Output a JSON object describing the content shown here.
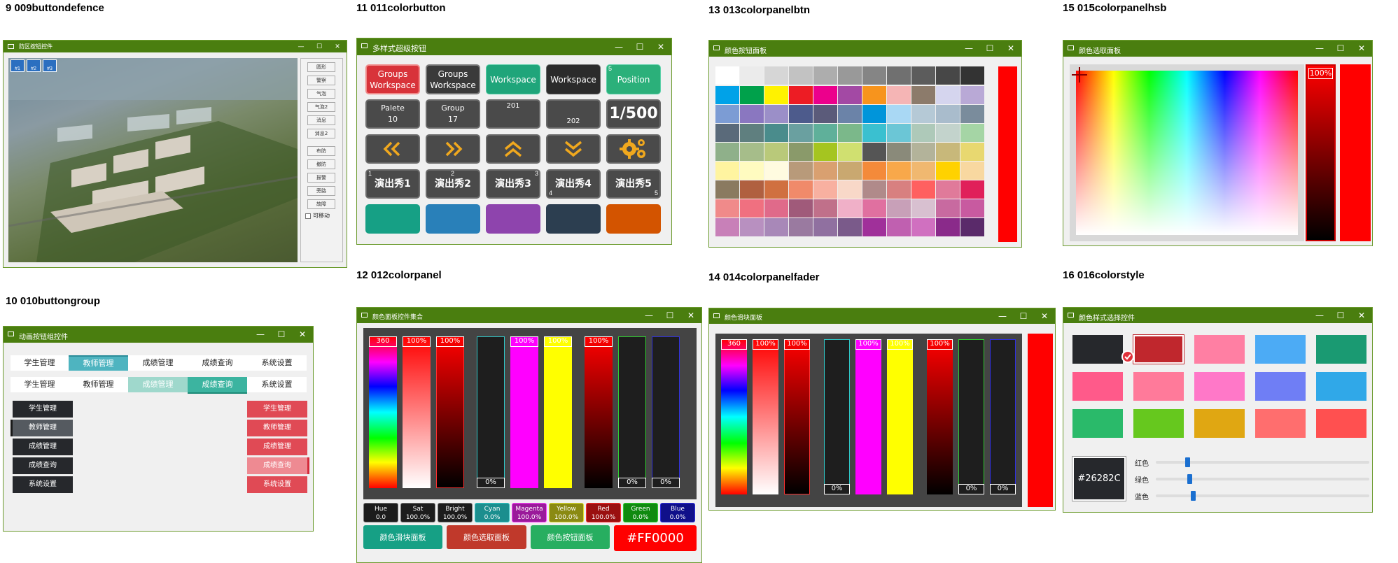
{
  "captions": {
    "c9": "9   009buttondefence",
    "c10": "10  010buttongroup",
    "c11": "11  011colorbutton",
    "c12": "12  012colorpanel",
    "c13": "13  013colorpanelbtn",
    "c14": "14  014colorpanelfader",
    "c15": "15  015colorpanelhsb",
    "c16": "16  016colorstyle"
  },
  "window_controls": {
    "min": "—",
    "max": "☐",
    "close": "✕"
  },
  "w9": {
    "title": "防区按钮控件",
    "markers": [
      "#1",
      "#2",
      "#3"
    ],
    "side_buttons": [
      "圆形",
      "警察",
      "气泡",
      "气泡2",
      "消息",
      "消息2",
      "布防",
      "撤防",
      "报警",
      "旁路",
      "故障"
    ],
    "checkbox_label": "可移动"
  },
  "w10": {
    "title": "动画按钮组控件",
    "row1": [
      "学生管理",
      "教师管理",
      "成绩管理",
      "成绩查询",
      "系统设置"
    ],
    "row2": [
      "学生管理",
      "教师管理",
      "成绩管理",
      "成绩查询",
      "系统设置"
    ],
    "left_menu": [
      "学生管理",
      "教师管理",
      "成绩管理",
      "成绩查询",
      "系统设置"
    ],
    "right_menu": [
      "学生管理",
      "教师管理",
      "成绩管理",
      "成绩查询",
      "系统设置"
    ]
  },
  "w11": {
    "title": "多样式超级按钮",
    "r1": [
      [
        "Groups",
        "Workspace"
      ],
      [
        "Groups",
        "Workspace"
      ],
      [
        "Workspace"
      ],
      [
        "Workspace"
      ],
      [
        "Position"
      ]
    ],
    "corner_5": "5",
    "r2": [
      [
        "Palete",
        "10"
      ],
      [
        "Group",
        "17"
      ],
      [
        "201"
      ],
      [
        "202"
      ],
      [
        "1/500"
      ]
    ],
    "r4": [
      "演出秀1",
      "演出秀2",
      "演出秀3",
      "演出秀4",
      "演出秀5"
    ],
    "r4_corners": [
      "1",
      "2",
      "3",
      "4",
      "5"
    ],
    "icons": [
      "double-chevron-left-icon",
      "double-chevron-right-icon",
      "double-chevron-up-icon",
      "double-chevron-down-icon",
      "gears-icon"
    ]
  },
  "w12": {
    "title": "颜色面板控件集合",
    "top_labels": [
      "360",
      "100%",
      "100%",
      "100%",
      "100%",
      "100%"
    ],
    "bottom_labels": [
      "0%",
      "0%",
      "0%"
    ],
    "info": [
      {
        "name": "Hue",
        "value": "0.0",
        "color": "#1c1c1c",
        "border": "#777777"
      },
      {
        "name": "Sat",
        "value": "100.0%",
        "color": "#1c1c1c",
        "border": "#777777"
      },
      {
        "name": "Bright",
        "value": "100.0%",
        "color": "#1c1c1c",
        "border": "#777777"
      },
      {
        "name": "Cyan",
        "value": "0.0%",
        "color": "#1b8e8e",
        "border": "#30c8c8"
      },
      {
        "name": "Magenta",
        "value": "100.0%",
        "color": "#9a1a9a",
        "border": "#ff40ff"
      },
      {
        "name": "Yellow",
        "value": "100.0%",
        "color": "#8a8a12",
        "border": "#e0e030"
      },
      {
        "name": "Red",
        "value": "100.0%",
        "color": "#9a1010",
        "border": "#ff3030"
      },
      {
        "name": "Green",
        "value": "0.0%",
        "color": "#108a10",
        "border": "#30d030"
      },
      {
        "name": "Blue",
        "value": "0.0%",
        "color": "#10108a",
        "border": "#3030e0"
      }
    ],
    "buttons": [
      "颜色滑块面板",
      "颜色选取面板",
      "颜色按钮面板"
    ],
    "hex": "#FF0000"
  },
  "w13": {
    "title": "颜色按钮面板",
    "colors": [
      [
        "#ffffff",
        "#ebebeb",
        "#d6d6d6",
        "#c2c2c2",
        "#adadad",
        "#999999",
        "#858585",
        "#707070",
        "#5c5c5c",
        "#474747",
        "#333333"
      ],
      [
        "#00a2e8",
        "#00a14b",
        "#fff200",
        "#ed1c24",
        "#ec008c",
        "#a349a4",
        "#f7941d",
        "#f5b5b5",
        "#8c7b6b",
        "#d5d5ee",
        "#b9a9d6"
      ],
      [
        "#7c9cd4",
        "#8a77c0",
        "#9b8fc8",
        "#4d5b8c",
        "#5b5b7a",
        "#6b83a8",
        "#0095da",
        "#a9d8f4",
        "#b5c9d6",
        "#a9bccc",
        "#7a8c9c"
      ],
      [
        "#5a6a7a",
        "#5f7f7f",
        "#4a8c8c",
        "#6aa0a0",
        "#5fb09a",
        "#7bb88a",
        "#3ac0d0",
        "#6bc6d6",
        "#aec9b9",
        "#c3d3cc",
        "#a5d5a5"
      ],
      [
        "#8fb08a",
        "#a6bd8a",
        "#b9c97a",
        "#8a9a6a",
        "#a5c520",
        "#d0e070",
        "#555555",
        "#8a8a7a",
        "#b3b39a",
        "#c8b87a",
        "#e8d870"
      ],
      [
        "#fff4a0",
        "#fffbc0",
        "#fffbe0",
        "#b89a7a",
        "#d9a070",
        "#c9a870",
        "#f48a3a",
        "#f8a84a",
        "#f0b870",
        "#ffd200",
        "#f8d8a0"
      ],
      [
        "#8a7a60",
        "#b06040",
        "#d07040",
        "#f08a6a",
        "#f8b0a0",
        "#f8d8c8",
        "#b08a8a",
        "#d88080",
        "#ff6060",
        "#e07a9a",
        "#e0205a"
      ],
      [
        "#f08a8a",
        "#f07080",
        "#e06a8a",
        "#a05a7a",
        "#c0708a",
        "#f0b0c8",
        "#e070a0",
        "#c8a0b8",
        "#d8c0d0",
        "#c86aa0",
        "#c85aa0"
      ],
      [
        "#c880b8",
        "#b890c0",
        "#a888b8",
        "#9a7aa0",
        "#9070a0",
        "#7a5a8a",
        "#a0309a",
        "#c060b0",
        "#d070c0",
        "#8a2a8a",
        "#5a2a6a"
      ]
    ],
    "selected": "#ff0000"
  },
  "w14": {
    "title": "颜色滑块面板",
    "top_labels": [
      "360",
      "100%",
      "100%",
      "100%",
      "100%",
      "100%"
    ],
    "bottom_labels": [
      "0%",
      "0%",
      "0%"
    ]
  },
  "w15": {
    "title": "颜色选取面板",
    "pct": "100%"
  },
  "w16": {
    "title": "颜色样式选择控件",
    "swatches": [
      [
        "#26282c",
        "#c0272d",
        "#ff7fa3",
        "#4cabf5",
        "#1a9a72"
      ],
      [
        "#ff5a8a",
        "#ff7a9a",
        "#ff78c8",
        "#6f7ef5",
        "#30a8e8"
      ],
      [
        "#2aba6a",
        "#66c81e",
        "#e0a712",
        "#ff6e6e",
        "#ff5050"
      ]
    ],
    "current": "#26282C",
    "sliders": [
      {
        "label": "红色",
        "value": 38
      },
      {
        "label": "绿色",
        "value": 40
      },
      {
        "label": "蓝色",
        "value": 44
      }
    ]
  }
}
